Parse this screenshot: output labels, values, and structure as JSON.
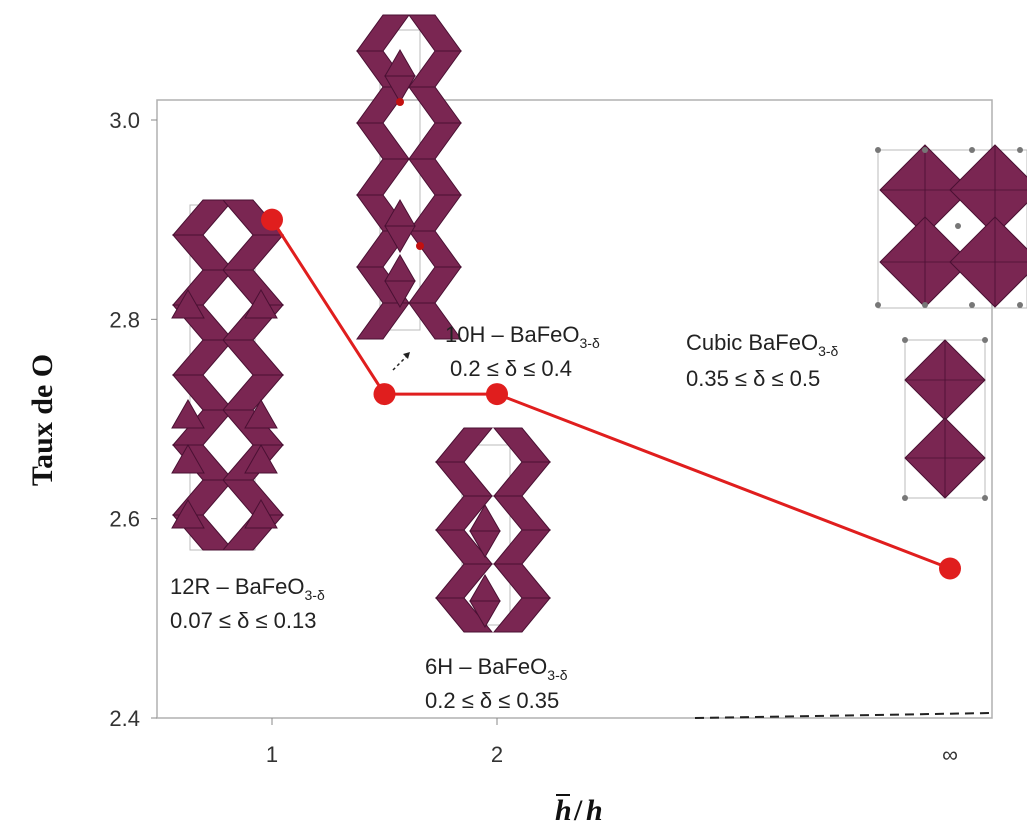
{
  "chart_data": {
    "type": "line",
    "ylabel": "Taux de O",
    "xlabel_main": "h",
    "xlabel_sep": "/",
    "xlabel_denom": "h",
    "ylim": [
      2.4,
      3.0
    ],
    "yticks": [
      "3.0",
      "2.8",
      "2.6",
      "2.4"
    ],
    "yticks_values": [
      3.0,
      2.8,
      2.6,
      2.4
    ],
    "xticks": [
      "1",
      "2",
      "∞"
    ],
    "points": [
      {
        "x": 1.0,
        "y": 2.9
      },
      {
        "x": 1.5,
        "y": 2.725
      },
      {
        "x": 2.0,
        "y": 2.725
      },
      {
        "x": "∞",
        "y": 2.55
      }
    ],
    "annotations": [
      {
        "name": "label-12r",
        "line1_prefix": "12R – BaFeO",
        "line1_sub": "3-δ",
        "line2": "0.07 ≤ δ ≤ 0.13"
      },
      {
        "name": "label-10h",
        "line1_prefix": "10H – BaFeO",
        "line1_sub": "3-δ",
        "line2": "0.2 ≤ δ ≤ 0.4"
      },
      {
        "name": "label-6h",
        "line1_prefix": "6H – BaFeO",
        "line1_sub": "3-δ",
        "line2": "0.2 ≤ δ ≤ 0.35"
      },
      {
        "name": "label-cubic",
        "line1_prefix": "Cubic BaFeO",
        "line1_sub": "3-δ",
        "line2": "0.35 ≤ δ ≤ 0.5"
      }
    ],
    "colors": {
      "series": "#e01e1e",
      "polyhedra": "#7a2652",
      "polyhedra_edge": "#4a1033",
      "frame": "#b0b0b0"
    },
    "grid": false,
    "legend": "none"
  }
}
